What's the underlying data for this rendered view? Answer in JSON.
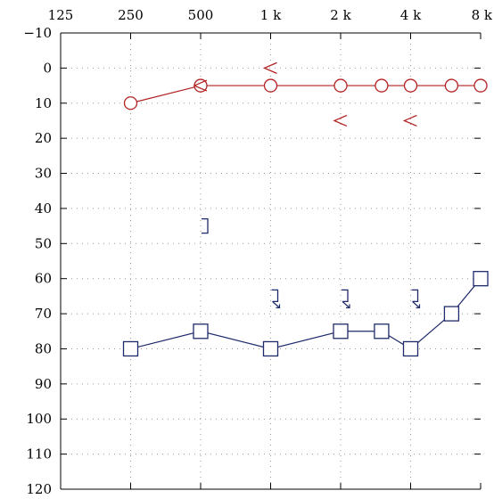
{
  "chart_data": {
    "type": "line",
    "title": "",
    "xlabel": "",
    "ylabel": "",
    "x_scale": "log2",
    "x_ticks": [
      {
        "value": 125,
        "label": "125"
      },
      {
        "value": 250,
        "label": "250"
      },
      {
        "value": 500,
        "label": "500"
      },
      {
        "value": 1000,
        "label": "1 k"
      },
      {
        "value": 2000,
        "label": "2 k"
      },
      {
        "value": 4000,
        "label": "4 k"
      },
      {
        "value": 8000,
        "label": "8 k"
      }
    ],
    "xlim": [
      125,
      8000
    ],
    "ylim": [
      -10,
      120
    ],
    "y_inverted": true,
    "y_ticks": [
      -10,
      0,
      10,
      20,
      30,
      40,
      50,
      60,
      70,
      80,
      90,
      100,
      110,
      120
    ],
    "y_tick_labels": [
      "−10",
      "0",
      "10",
      "20",
      "30",
      "40",
      "50",
      "60",
      "70",
      "80",
      "90",
      "100",
      "110",
      "120"
    ],
    "grid": true,
    "series": [
      {
        "marker": "circle",
        "color": "#b22222",
        "connected": true,
        "x": [
          250,
          500,
          1000,
          2000,
          3000,
          4000,
          6000,
          8000
        ],
        "values": [
          10,
          5,
          5,
          5,
          5,
          5,
          5,
          5
        ]
      },
      {
        "marker": "square",
        "color": "#1f2a6b",
        "connected": true,
        "x": [
          250,
          500,
          1000,
          2000,
          3000,
          4000,
          6000,
          8000
        ],
        "values": [
          80,
          75,
          80,
          75,
          75,
          80,
          70,
          60
        ]
      },
      {
        "marker": "less-than",
        "color": "#b22222",
        "connected": false,
        "x": [
          500,
          1000,
          2000,
          4000
        ],
        "values": [
          5,
          0,
          15,
          15
        ]
      },
      {
        "marker": "right-bracket",
        "color": "#1f2a6b",
        "connected": false,
        "x": [
          500
        ],
        "values": [
          45
        ]
      },
      {
        "marker": "right-bracket-arrow",
        "color": "#1f2a6b",
        "connected": false,
        "x": [
          1000,
          2000,
          4000
        ],
        "values": [
          65,
          65,
          65
        ]
      }
    ]
  }
}
